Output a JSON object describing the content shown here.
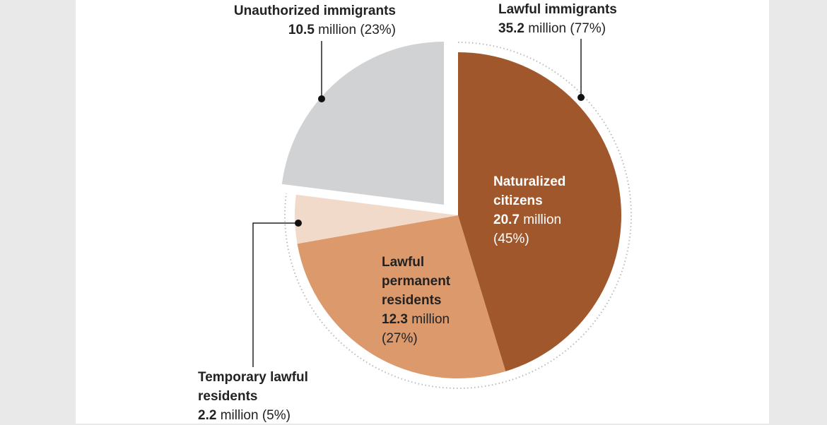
{
  "chart_data": {
    "type": "pie",
    "categories": [
      "Naturalized citizens",
      "Lawful permanent residents",
      "Temporary lawful residents",
      "Unauthorized immigrants"
    ],
    "values": [
      20.7,
      12.3,
      2.2,
      10.5
    ],
    "shares": [
      45,
      27,
      5,
      23
    ],
    "share_labels": [
      "(45%)",
      "(27%)",
      "(5%)",
      "(23%)"
    ],
    "colors": [
      "#a0572b",
      "#dc9a6c",
      "#f2dacb",
      "#d1d2d4"
    ],
    "unit": "million",
    "group": {
      "name": "Lawful immigrants",
      "value": 35.2,
      "share": 77,
      "share_label": "(77%)",
      "members": [
        0,
        1,
        2
      ]
    }
  }
}
